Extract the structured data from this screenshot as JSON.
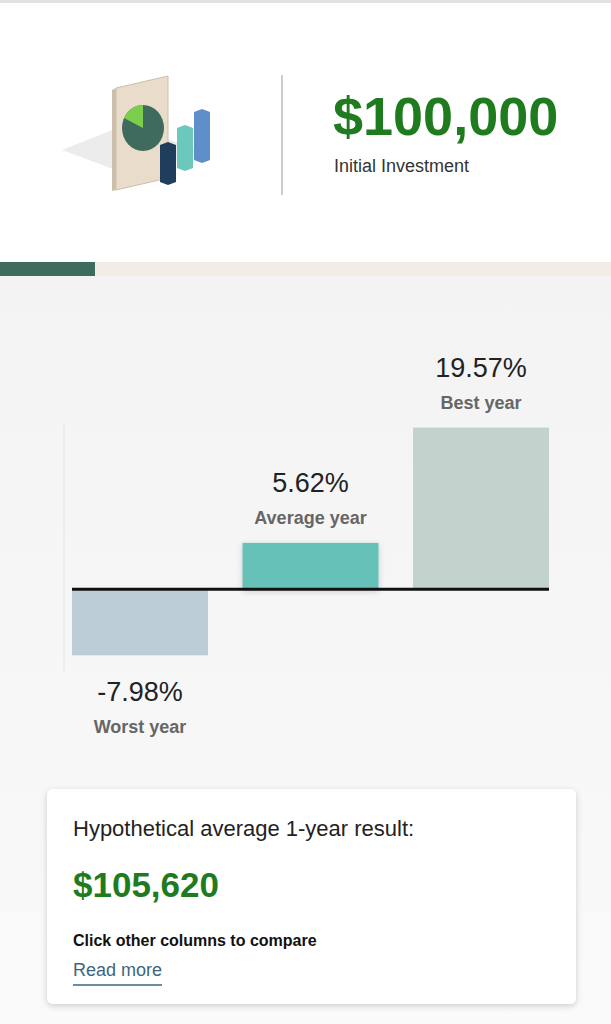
{
  "header": {
    "amount": "$100,000",
    "label": "Initial Investment"
  },
  "chart_data": {
    "type": "bar",
    "categories": [
      "Worst year",
      "Average year",
      "Best year"
    ],
    "values": [
      -7.98,
      5.62,
      19.57
    ],
    "value_labels": [
      "-7.98%",
      "5.62%",
      "19.57%"
    ],
    "colors": [
      "#bccdd8",
      "#66c2b8",
      "#c2d2cc"
    ],
    "ylim": [
      -10,
      20
    ],
    "yticks": [
      0
    ],
    "data_labels": true,
    "tick_labels": false,
    "grid": false
  },
  "result_box": {
    "title": "Hypothetical average 1-year result:",
    "amount": "$105,620",
    "hint": "Click other columns to compare",
    "link": "Read more"
  }
}
